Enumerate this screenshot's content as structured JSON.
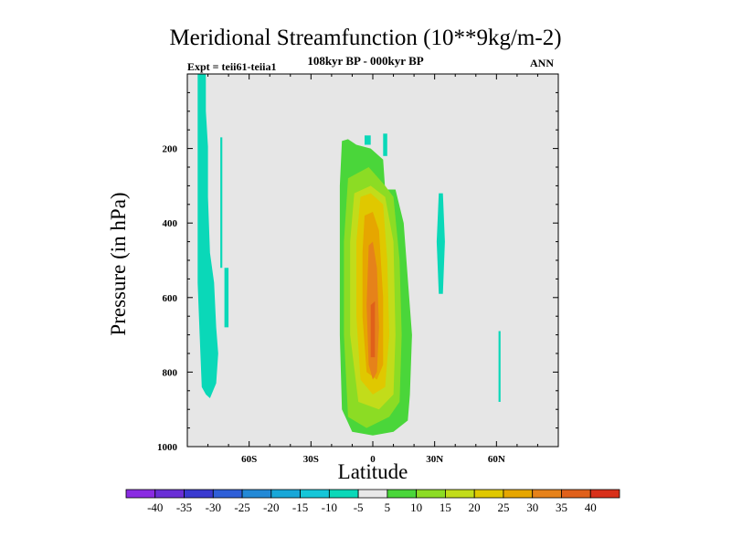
{
  "title": "Meridional Streamfunction (10**9kg/m-2)",
  "subtitle": "108kyr BP - 000kyr BP",
  "left_label": "Expt = teii61-teiia1",
  "right_label": "ANN",
  "chart_data": {
    "type": "heatmap",
    "title": "Meridional Streamfunction (10**9kg/m-2)",
    "xlabel": "Latitude",
    "ylabel": "Pressure (in hPa)",
    "xlim": [
      -90,
      90
    ],
    "ylim": [
      1000,
      0
    ],
    "xticks": [
      {
        "value": -60,
        "label": "60S"
      },
      {
        "value": -30,
        "label": "30S"
      },
      {
        "value": 0,
        "label": "0"
      },
      {
        "value": 30,
        "label": "30N"
      },
      {
        "value": 60,
        "label": "60N"
      }
    ],
    "yticks": [
      200,
      400,
      600,
      800,
      1000
    ],
    "background_color": "#e6e6e6",
    "colorbar": {
      "levels": [
        "-40",
        "-35",
        "-30",
        "-25",
        "-20",
        "-15",
        "-10",
        "-5",
        "5",
        "10",
        "15",
        "20",
        "25",
        "30",
        "35",
        "40"
      ],
      "colors": [
        "#8a2be2",
        "#6a2fd6",
        "#3a3ad0",
        "#2f5fd8",
        "#2389d6",
        "#18a7d8",
        "#15c6d8",
        "#0ad8b8",
        "#e8e8e8",
        "#4ad63a",
        "#8cdc24",
        "#c2dc1a",
        "#e0c800",
        "#e6a600",
        "#e6821a",
        "#e0601a",
        "#d8301a"
      ]
    },
    "regions": [
      {
        "value": "-10 to -5",
        "color": "#0ad8b8",
        "outline": [
          [
            -85,
            0
          ],
          [
            -81,
            0
          ],
          [
            -81,
            100
          ],
          [
            -80,
            195
          ],
          [
            -80,
            330
          ],
          [
            -79,
            480
          ],
          [
            -77,
            560
          ],
          [
            -76,
            680
          ],
          [
            -75,
            750
          ],
          [
            -76,
            830
          ],
          [
            -79,
            870
          ],
          [
            -81,
            860
          ],
          [
            -83,
            840
          ],
          [
            -84,
            700
          ],
          [
            -85,
            560
          ]
        ]
      },
      {
        "value": "-10 to -5",
        "color": "#0ad8b8",
        "outline": [
          [
            -74,
            170
          ],
          [
            -73,
            170
          ],
          [
            -73,
            520
          ],
          [
            -74,
            520
          ]
        ]
      },
      {
        "value": "-10 to -5",
        "color": "#0ad8b8",
        "outline": [
          [
            -72,
            520
          ],
          [
            -70,
            520
          ],
          [
            -70,
            680
          ],
          [
            -72,
            680
          ]
        ]
      },
      {
        "value": "-10 to -5",
        "color": "#0ad8b8",
        "outline": [
          [
            -4,
            165
          ],
          [
            -1,
            165
          ],
          [
            -1,
            190
          ],
          [
            -4,
            190
          ]
        ]
      },
      {
        "value": "-10 to -5",
        "color": "#0ad8b8",
        "outline": [
          [
            5,
            160
          ],
          [
            7,
            160
          ],
          [
            7,
            220
          ],
          [
            5,
            220
          ]
        ]
      },
      {
        "value": "-10 to -5",
        "color": "#0ad8b8",
        "outline": [
          [
            32,
            320
          ],
          [
            34,
            320
          ],
          [
            35,
            450
          ],
          [
            34,
            590
          ],
          [
            32,
            590
          ],
          [
            31,
            450
          ]
        ]
      },
      {
        "value": "-10 to -5",
        "color": "#0ad8b8",
        "outline": [
          [
            61,
            690
          ],
          [
            62,
            690
          ],
          [
            62,
            880
          ],
          [
            61,
            880
          ]
        ]
      },
      {
        "value": "5 to 10",
        "color": "#4ad63a",
        "outline": [
          [
            -15,
            180
          ],
          [
            -12,
            175
          ],
          [
            -8,
            190
          ],
          [
            -1,
            200
          ],
          [
            5,
            230
          ],
          [
            6,
            310
          ],
          [
            11,
            310
          ],
          [
            15,
            400
          ],
          [
            17,
            550
          ],
          [
            19,
            700
          ],
          [
            18,
            860
          ],
          [
            17,
            930
          ],
          [
            10,
            960
          ],
          [
            0,
            970
          ],
          [
            -10,
            960
          ],
          [
            -15,
            900
          ],
          [
            -16,
            700
          ],
          [
            -16,
            500
          ],
          [
            -16,
            300
          ]
        ]
      },
      {
        "value": "10 to 15",
        "color": "#8cdc24",
        "outline": [
          [
            -12,
            280
          ],
          [
            -2,
            250
          ],
          [
            6,
            300
          ],
          [
            10,
            330
          ],
          [
            13,
            500
          ],
          [
            14,
            700
          ],
          [
            13,
            880
          ],
          [
            8,
            920
          ],
          [
            -3,
            950
          ],
          [
            -12,
            920
          ],
          [
            -14,
            700
          ],
          [
            -14,
            450
          ]
        ]
      },
      {
        "value": "15 to 20",
        "color": "#c2dc1a",
        "outline": [
          [
            -9,
            320
          ],
          [
            -1,
            300
          ],
          [
            6,
            330
          ],
          [
            10,
            450
          ],
          [
            11,
            700
          ],
          [
            10,
            860
          ],
          [
            3,
            900
          ],
          [
            -7,
            880
          ],
          [
            -11,
            700
          ],
          [
            -11,
            450
          ]
        ]
      },
      {
        "value": "20 to 25",
        "color": "#e0c800",
        "outline": [
          [
            -6,
            330
          ],
          [
            -1,
            320
          ],
          [
            5,
            350
          ],
          [
            7,
            500
          ],
          [
            8,
            700
          ],
          [
            6,
            840
          ],
          [
            0,
            860
          ],
          [
            -6,
            820
          ],
          [
            -8,
            650
          ],
          [
            -8,
            450
          ]
        ]
      },
      {
        "value": "25 to 30",
        "color": "#e6a600",
        "outline": [
          [
            -4,
            380
          ],
          [
            0,
            370
          ],
          [
            3,
            420
          ],
          [
            5,
            600
          ],
          [
            5,
            780
          ],
          [
            2,
            820
          ],
          [
            -3,
            800
          ],
          [
            -5,
            650
          ],
          [
            -5,
            480
          ]
        ]
      },
      {
        "value": "30 to 35",
        "color": "#e6821a",
        "outline": [
          [
            -2,
            460
          ],
          [
            0,
            450
          ],
          [
            2,
            520
          ],
          [
            3,
            680
          ],
          [
            2,
            800
          ],
          [
            0,
            820
          ],
          [
            -2,
            780
          ],
          [
            -3,
            620
          ]
        ]
      },
      {
        "value": "35 to 40",
        "color": "#e0601a",
        "outline": [
          [
            -1,
            620
          ],
          [
            1,
            610
          ],
          [
            1,
            760
          ],
          [
            -1,
            760
          ]
        ]
      }
    ]
  }
}
